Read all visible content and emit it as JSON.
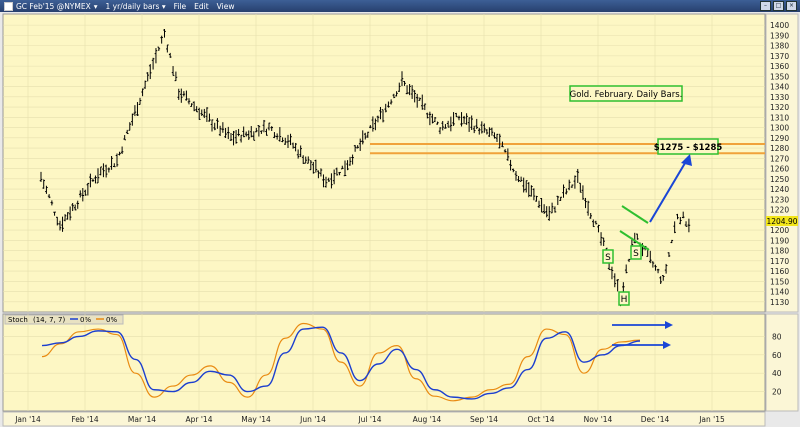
{
  "window": {
    "symbol": "GC Feb'15 @NYMEX",
    "interval": "1 yr/daily bars",
    "menu": [
      "File",
      "Edit",
      "View"
    ]
  },
  "colors": {
    "panel_bg": "#fdf7c4",
    "bars": "#000000",
    "resistance": "#f0a23a",
    "arrow": "#1a46d6",
    "box_border": "#2fbf2f",
    "last_price_bg": "#f3e61a",
    "stoch_k": "#e98b12",
    "stoch_d": "#1c3fcf"
  },
  "price_panel": {
    "annotation": "Gold. February. Daily Bars.",
    "target_label": "$1275 - $1285",
    "last_price": "1204.90",
    "pattern_labels": [
      "S",
      "S",
      "H"
    ]
  },
  "stoch_panel": {
    "legend_name": "Stoch",
    "legend_params": "(14, 7, 7)",
    "legend_k": "0%",
    "legend_d": "0%"
  },
  "chart_data": [
    {
      "type": "bar",
      "title": "",
      "ylim": [
        1122,
        1405
      ],
      "y_ticks": [
        1130,
        1140,
        1150,
        1160,
        1170,
        1180,
        1190,
        1200,
        1210,
        1220,
        1230,
        1240,
        1250,
        1260,
        1270,
        1280,
        1290,
        1300,
        1310,
        1320,
        1330,
        1340,
        1350,
        1360,
        1370,
        1380,
        1390,
        1400
      ],
      "x_ticks": [
        "Jan '14",
        "Feb '14",
        "Mar '14",
        "Apr '14",
        "May '14",
        "Jun '14",
        "Jul '14",
        "Aug '14",
        "Sep '14",
        "Oct '14",
        "Nov '14",
        "Dec '14",
        "Jan '15"
      ],
      "resistance_levels": [
        1275,
        1284
      ],
      "target_range": [
        1275,
        1285
      ],
      "last_price": 1204.9,
      "price_path": [
        [
          "Jan '14",
          1252
        ],
        [
          "Jan '14",
          1205
        ],
        [
          "Feb '14",
          1255
        ],
        [
          "Feb '14",
          1268
        ],
        [
          "Mar '14",
          1355
        ],
        [
          "Mar '14",
          1392
        ],
        [
          "Mar '14",
          1335
        ],
        [
          "Apr '14",
          1305
        ],
        [
          "Apr '14",
          1290
        ],
        [
          "May '14",
          1300
        ],
        [
          "May '14",
          1288
        ],
        [
          "Jun '14",
          1248
        ],
        [
          "Jun '14",
          1262
        ],
        [
          "Jul '14",
          1315
        ],
        [
          "Jul '14",
          1345
        ],
        [
          "Aug '14",
          1300
        ],
        [
          "Aug '14",
          1310
        ],
        [
          "Sep '14",
          1290
        ],
        [
          "Sep '14",
          1255
        ],
        [
          "Oct '14",
          1215
        ],
        [
          "Oct '14",
          1235
        ],
        [
          "Oct '14",
          1250
        ],
        [
          "Nov '14",
          1178
        ],
        [
          "Nov '14",
          1135
        ],
        [
          "Nov '14",
          1195
        ],
        [
          "Dec '14",
          1150
        ],
        [
          "Dec '14",
          1215
        ],
        [
          "Dec '14",
          1205
        ]
      ]
    },
    {
      "type": "line",
      "title": "",
      "ylim": [
        0,
        100
      ],
      "y_ticks": [
        20,
        40,
        60,
        80
      ],
      "series": [
        {
          "name": "%K",
          "values": [
            58,
            72,
            85,
            88,
            82,
            40,
            14,
            26,
            38,
            48,
            30,
            14,
            38,
            78,
            94,
            88,
            52,
            26,
            62,
            70,
            34,
            15,
            10,
            14,
            22,
            28,
            58,
            88,
            82,
            40,
            66,
            74,
            76
          ]
        },
        {
          "name": "%D",
          "values": [
            70,
            73,
            80,
            86,
            85,
            55,
            22,
            20,
            30,
            42,
            38,
            20,
            26,
            62,
            88,
            90,
            62,
            32,
            50,
            66,
            44,
            22,
            14,
            12,
            18,
            24,
            44,
            78,
            85,
            52,
            60,
            70,
            75
          ]
        }
      ]
    }
  ]
}
